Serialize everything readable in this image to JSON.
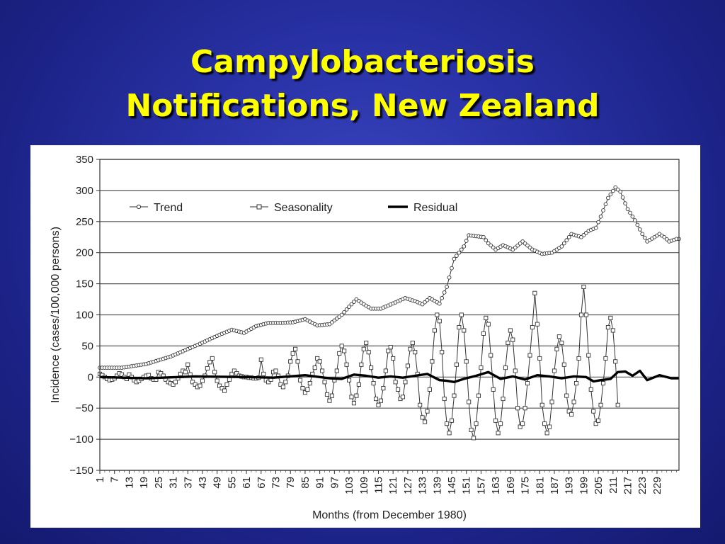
{
  "slide": {
    "title_line1": "Campylobacteriosis",
    "title_line2": "Notifications, New Zealand"
  },
  "colors": {
    "background": "#1c2388",
    "title": "#ffff00",
    "plot_line": "#333333",
    "residual": "#000000"
  },
  "chart_data": {
    "type": "line",
    "xlabel": "Months (from December 1980)",
    "ylabel": "Incidence (cases/100,000 persons)",
    "xlim": [
      1,
      238
    ],
    "ylim": [
      -150,
      350
    ],
    "yticks": [
      350,
      300,
      250,
      200,
      150,
      100,
      50,
      0,
      -50,
      -100,
      -150
    ],
    "ytick_labels": [
      "350",
      "300",
      "250",
      "200",
      "150",
      "100",
      "50",
      "0",
      "−50",
      "−100",
      "−150"
    ],
    "xticks": [
      1,
      7,
      13,
      19,
      25,
      31,
      37,
      43,
      49,
      55,
      61,
      67,
      73,
      79,
      85,
      91,
      97,
      103,
      109,
      115,
      121,
      127,
      133,
      139,
      145,
      151,
      157,
      163,
      169,
      175,
      181,
      187,
      193,
      199,
      205,
      211,
      217,
      223,
      229
    ],
    "grid": "horizontal",
    "legend_position": "top",
    "legend": [
      "Trend",
      "Seasonality",
      "Residual"
    ],
    "series": [
      {
        "name": "Trend",
        "marker": "circle",
        "points": [
          [
            1,
            15
          ],
          [
            10,
            15
          ],
          [
            20,
            21
          ],
          [
            30,
            33
          ],
          [
            40,
            50
          ],
          [
            50,
            68
          ],
          [
            55,
            76
          ],
          [
            60,
            71
          ],
          [
            65,
            82
          ],
          [
            70,
            87
          ],
          [
            75,
            87
          ],
          [
            80,
            88
          ],
          [
            85,
            93
          ],
          [
            90,
            83
          ],
          [
            95,
            85
          ],
          [
            100,
            100
          ],
          [
            103,
            113
          ],
          [
            106,
            125
          ],
          [
            109,
            117
          ],
          [
            112,
            110
          ],
          [
            116,
            110
          ],
          [
            122,
            120
          ],
          [
            126,
            127
          ],
          [
            130,
            122
          ],
          [
            133,
            117
          ],
          [
            136,
            127
          ],
          [
            140,
            118
          ],
          [
            143,
            145
          ],
          [
            146,
            190
          ],
          [
            150,
            210
          ],
          [
            152,
            228
          ],
          [
            158,
            225
          ],
          [
            160,
            215
          ],
          [
            163,
            205
          ],
          [
            166,
            212
          ],
          [
            170,
            205
          ],
          [
            174,
            218
          ],
          [
            178,
            205
          ],
          [
            182,
            198
          ],
          [
            186,
            200
          ],
          [
            190,
            210
          ],
          [
            194,
            230
          ],
          [
            198,
            225
          ],
          [
            201,
            235
          ],
          [
            204,
            240
          ],
          [
            206,
            258
          ],
          [
            209,
            288
          ],
          [
            212,
            305
          ],
          [
            214,
            298
          ],
          [
            217,
            270
          ],
          [
            220,
            252
          ],
          [
            223,
            230
          ],
          [
            225,
            218
          ],
          [
            228,
            225
          ],
          [
            230,
            230
          ],
          [
            232,
            225
          ],
          [
            234,
            218
          ],
          [
            237,
            222
          ]
        ]
      },
      {
        "name": "Seasonality",
        "marker": "square",
        "values": [
          5,
          3,
          0,
          -3,
          -5,
          -4,
          -2,
          2,
          6,
          4,
          0,
          -3,
          4,
          0,
          -5,
          -8,
          -6,
          -3,
          0,
          2,
          3,
          -2,
          -4,
          -4,
          8,
          6,
          2,
          -4,
          -8,
          -10,
          -12,
          -8,
          -2,
          5,
          10,
          8,
          20,
          4,
          -8,
          -12,
          -16,
          -14,
          -6,
          2,
          14,
          24,
          30,
          8,
          -6,
          -14,
          -18,
          -22,
          -12,
          -4,
          5,
          10,
          6,
          2,
          1,
          0,
          0,
          -1,
          -1,
          -2,
          -2,
          -1,
          28,
          5,
          -5,
          -8,
          -4,
          8,
          10,
          2,
          -12,
          -16,
          -8,
          2,
          25,
          38,
          45,
          25,
          -5,
          -18,
          -25,
          -20,
          -10,
          5,
          15,
          30,
          25,
          10,
          -8,
          -28,
          -38,
          -30,
          -5,
          10,
          38,
          50,
          42,
          20,
          -5,
          -32,
          -42,
          -30,
          -12,
          20,
          45,
          55,
          40,
          15,
          -10,
          -35,
          -45,
          -38,
          -18,
          10,
          42,
          48,
          30,
          -8,
          -20,
          -35,
          -32,
          -8,
          18,
          45,
          55,
          40,
          5,
          -45,
          -65,
          -72,
          -55,
          -20,
          25,
          75,
          100,
          90,
          40,
          -35,
          -75,
          -90,
          -70,
          -30,
          20,
          80,
          100,
          75,
          25,
          -40,
          -85,
          -98,
          -75,
          -30,
          15,
          70,
          95,
          85,
          35,
          -20,
          -70,
          -90,
          -75,
          -35,
          15,
          55,
          75,
          60,
          10,
          -50,
          -80,
          -75,
          -50,
          -10,
          35,
          80,
          135,
          85,
          30,
          -45,
          -75,
          -90,
          -80,
          -40,
          10,
          45,
          65,
          55,
          20,
          -30,
          -55,
          -60,
          -40,
          -10,
          30,
          100,
          145,
          100,
          35,
          -20,
          -55,
          -75,
          -70,
          -45,
          -10,
          30,
          80,
          95,
          75,
          25,
          -45
        ]
      },
      {
        "name": "Residual",
        "marker": "none",
        "points": [
          [
            1,
            0
          ],
          [
            20,
            -2
          ],
          [
            40,
            1
          ],
          [
            60,
            0
          ],
          [
            72,
            -1
          ],
          [
            85,
            3
          ],
          [
            95,
            -2
          ],
          [
            100,
            -3
          ],
          [
            105,
            4
          ],
          [
            110,
            2
          ],
          [
            115,
            -1
          ],
          [
            120,
            1
          ],
          [
            125,
            -1
          ],
          [
            130,
            2
          ],
          [
            135,
            5
          ],
          [
            140,
            -5
          ],
          [
            143,
            -6
          ],
          [
            146,
            -8
          ],
          [
            150,
            -3
          ],
          [
            155,
            2
          ],
          [
            160,
            8
          ],
          [
            165,
            -3
          ],
          [
            170,
            1
          ],
          [
            175,
            -4
          ],
          [
            180,
            3
          ],
          [
            185,
            1
          ],
          [
            190,
            -2
          ],
          [
            195,
            1
          ],
          [
            200,
            0
          ],
          [
            203,
            -7
          ],
          [
            206,
            -5
          ],
          [
            210,
            -3
          ],
          [
            213,
            8
          ],
          [
            216,
            9
          ],
          [
            219,
            2
          ],
          [
            222,
            10
          ],
          [
            225,
            -5
          ],
          [
            230,
            3
          ],
          [
            235,
            -2
          ],
          [
            238,
            -2
          ]
        ]
      }
    ]
  }
}
